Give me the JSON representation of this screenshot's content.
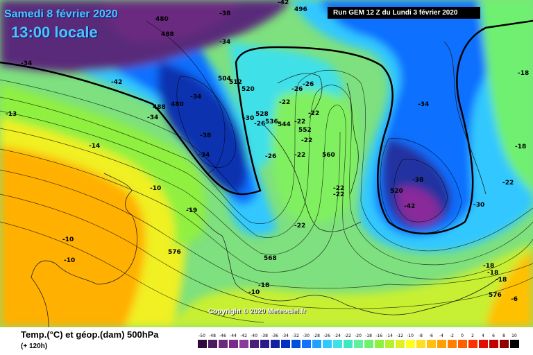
{
  "header": {
    "date": "Samedi 8 février 2020",
    "time": "13:00 locale",
    "run": "Run GEM 12 Z du Lundi 3 février 2020"
  },
  "copyright": "Copyright © 2020 Meteociel.fr",
  "legend": {
    "title": "Temp.(°C) et géop.(dam) 500hPa",
    "subtitle": "(+ 120h)",
    "ticks": [
      "-50",
      "-48",
      "-46",
      "-44",
      "-42",
      "-40",
      "-38",
      "-36",
      "-34",
      "-32",
      "-30",
      "-28",
      "-26",
      "-24",
      "-22",
      "-20",
      "-18",
      "-16",
      "-14",
      "-12",
      "-10",
      "-8",
      "-6",
      "-4",
      "-2",
      "0",
      "2",
      "4",
      "6",
      "8",
      "10"
    ],
    "colors": [
      "#2e0a3a",
      "#4a1a5a",
      "#6a2a7a",
      "#7a2a8a",
      "#8a3a9a",
      "#4b1f7a",
      "#2a1a8a",
      "#1020a0",
      "#0030c0",
      "#0050e0",
      "#1070ff",
      "#20a0ff",
      "#30c8ff",
      "#40e0e8",
      "#40e8c0",
      "#60f0a0",
      "#70f070",
      "#90f040",
      "#b8f030",
      "#e0f020",
      "#ffff20",
      "#ffe020",
      "#ffc010",
      "#ffa000",
      "#ff8000",
      "#ff6000",
      "#ff3000",
      "#e01000",
      "#c00000",
      "#900000",
      "#000000"
    ]
  },
  "temperature_labels": [
    "-34",
    "-42",
    "-13",
    "-14",
    "-10",
    "-10",
    "-10",
    "-19",
    "-34",
    "-34",
    "-34",
    "-38",
    "-34",
    "-30",
    "-26",
    "-26",
    "-26",
    "-22",
    "-22",
    "-22",
    "-22",
    "-22",
    "-22",
    "-22",
    "-22",
    "-26",
    "-38",
    "-42",
    "-30",
    "-34",
    "-18",
    "-22",
    "-18",
    "-18",
    "-18",
    "-18",
    "-6",
    "-10",
    "-38",
    "-42",
    "-18"
  ],
  "geopotential_labels": [
    "480",
    "488",
    "496",
    "480",
    "488",
    "504",
    "512",
    "520",
    "528",
    "536",
    "544",
    "552",
    "560",
    "568",
    "576",
    "520",
    "576"
  ]
}
